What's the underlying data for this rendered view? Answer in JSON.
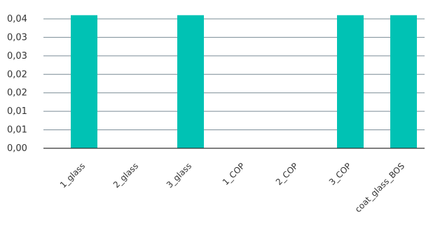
{
  "chart_data": {
    "type": "bar",
    "categories": [
      "1_glass",
      "2_glass",
      "3_glass",
      "1_COP",
      "2_COP",
      "3_COP",
      "coat_glass_BOS"
    ],
    "values": [
      0.036,
      0,
      0.036,
      0,
      0,
      0.036,
      0.036
    ],
    "y_ticks": [
      {
        "value": 0.0,
        "label": "0,00"
      },
      {
        "value": 0.005,
        "label": "0,01"
      },
      {
        "value": 0.01,
        "label": "0,01"
      },
      {
        "value": 0.015,
        "label": "0,02"
      },
      {
        "value": 0.02,
        "label": "0,02"
      },
      {
        "value": 0.025,
        "label": "0,03"
      },
      {
        "value": 0.03,
        "label": "0,03"
      },
      {
        "value": 0.035,
        "label": "0,04"
      }
    ],
    "ylim": [
      0,
      0.035
    ],
    "grid": true,
    "bar_color": "#00c2b4",
    "grid_color": "#7a8c96"
  }
}
